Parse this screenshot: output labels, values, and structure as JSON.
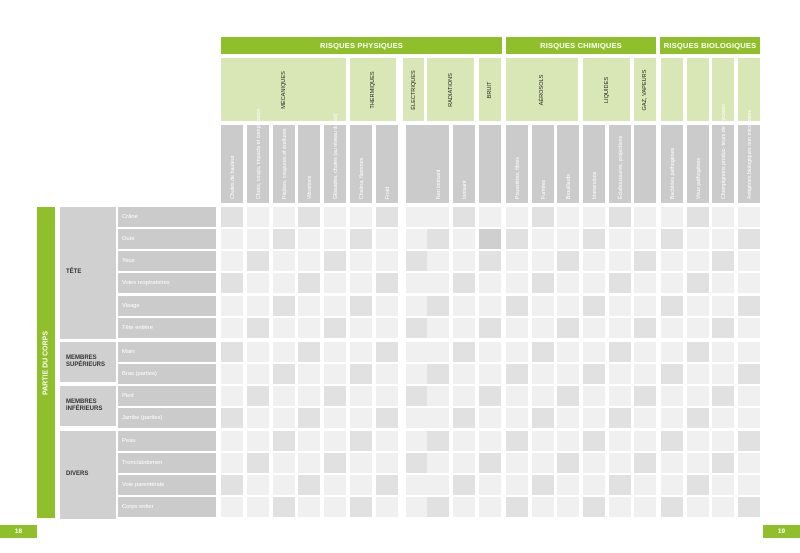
{
  "groups": [
    {
      "label": "RISQUES PHYSIQUES"
    },
    {
      "label": "RISQUES CHIMIQUES"
    },
    {
      "label": "RISQUES BIOLOGIQUES"
    }
  ],
  "subgroups": [
    {
      "label": "MÉCANIQUES"
    },
    {
      "label": "THERMIQUES"
    },
    {
      "label": "ÉLECTRIQUES"
    },
    {
      "label": "RADIATIONS"
    },
    {
      "label": "BRUIT"
    },
    {
      "label": "AÉROSOLS"
    },
    {
      "label": "LIQUIDES"
    },
    {
      "label": "GAZ, VAPEURS"
    }
  ],
  "hazards": [
    "Chutes de hauteur",
    "Chocs, coups, impacts et compression",
    "Piqûres, coupures et éraflures",
    "Vibrations",
    "Glissades, chutes (au niveau du sol)",
    "Chaleur, flammes",
    "Froid",
    "",
    "Non ionisant",
    "Ionisant",
    "",
    "Poussières, fibres",
    "Fumées",
    "Brouillards",
    "Immersions",
    "Éclaboussures, projections",
    "",
    "Bactéries pathogènes",
    "Virus pathogènes",
    "Champignons produc- teurs de mycoses",
    "Antigènes biologiques non microbiens"
  ],
  "side_label": "PARTIE DU CORPS",
  "body_groups": [
    {
      "label": "TÊTE"
    },
    {
      "label": "MEMBRES SUPÉRIEURS"
    },
    {
      "label": "MEMBRES INFÉRIEURS"
    },
    {
      "label": "DIVERS"
    }
  ],
  "body_parts": [
    "Crâne",
    "Ouïe",
    "Yeux",
    "Voies respiratoires",
    "Visage",
    "Tête entière",
    "Main",
    "Bras (parties)",
    "Pied",
    "Jambe (parties)",
    "Peau",
    "Tronc/abdomen",
    "Voie parentérale",
    "Corps entier"
  ],
  "pages": {
    "left": "18",
    "right": "19"
  },
  "colors": {
    "accent": "#8fc02b",
    "subheader": "#d9e6b5"
  }
}
